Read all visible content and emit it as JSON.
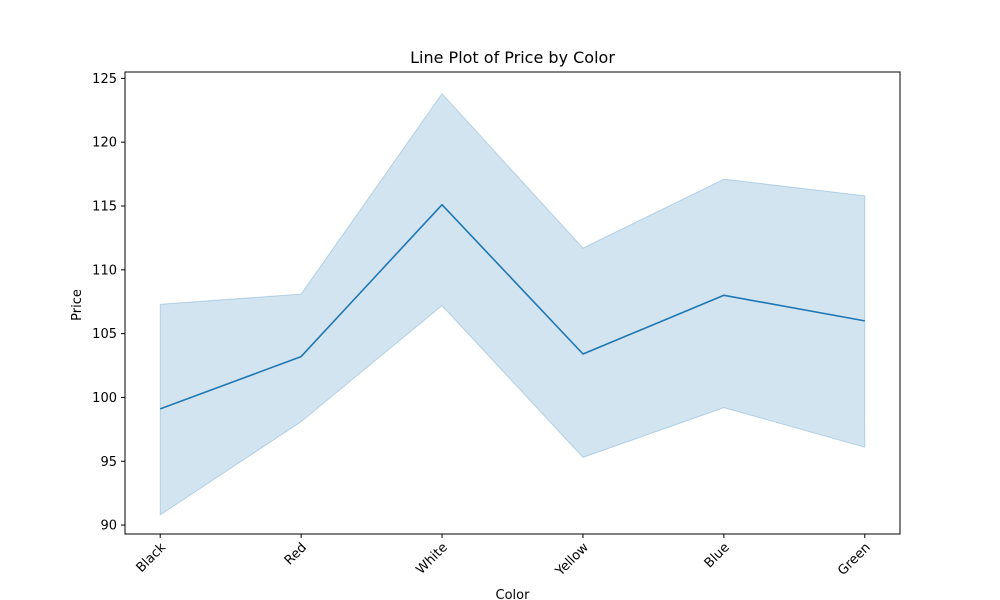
{
  "chart_data": {
    "type": "line",
    "title": "Line Plot of Price by Color",
    "xlabel": "Color",
    "ylabel": "Price",
    "categories": [
      "Black",
      "Red",
      "White",
      "Yellow",
      "Blue",
      "Green"
    ],
    "series": [
      {
        "values": [
          99.1,
          103.2,
          115.1,
          103.4,
          108.0,
          106.0
        ],
        "ci_lower": [
          90.8,
          98.1,
          107.2,
          95.3,
          99.2,
          96.1
        ],
        "ci_upper": [
          107.3,
          108.1,
          123.8,
          111.7,
          117.1,
          115.8
        ]
      }
    ],
    "ylim": [
      89.3,
      125.5
    ],
    "yticks": [
      90,
      95,
      100,
      105,
      110,
      115,
      120,
      125
    ],
    "grid": false,
    "colors": {
      "line": "#1f77b4",
      "band": "#1f77b4"
    }
  }
}
